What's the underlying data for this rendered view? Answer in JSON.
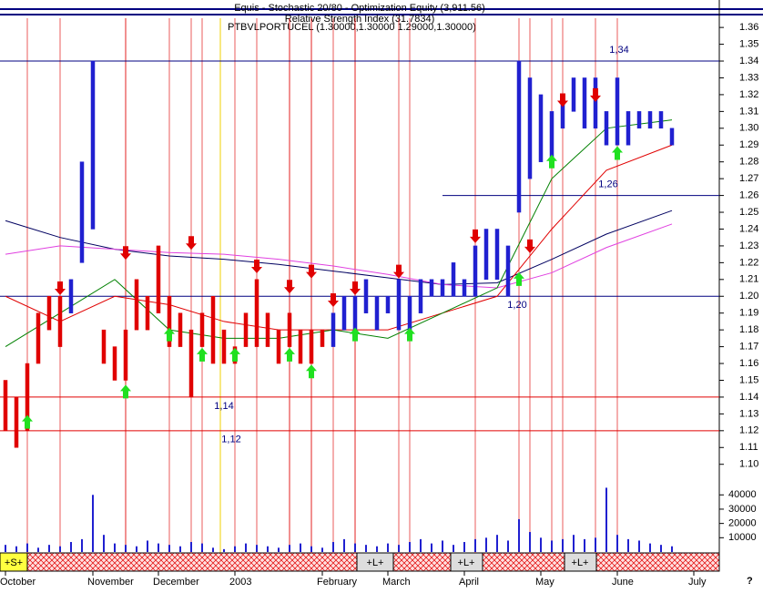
{
  "chart_data": {
    "type": "price-range",
    "title": "Equis - Stochastic 20/80 - Optimization Equity (3,911.56)",
    "subtitle": "Relative Strength Index (31.7834)",
    "symbol_line": "PTBVLPORTUCEL (1.30000,1.30000 1.29000,1.30000)",
    "highs": [
      1.15,
      1.14,
      1.16,
      1.19,
      1.2,
      1.2,
      1.21,
      1.28,
      1.34,
      1.18,
      1.17,
      1.18,
      1.21,
      1.2,
      1.23,
      1.2,
      1.19,
      1.18,
      1.19,
      1.2,
      1.18,
      1.17,
      1.19,
      1.21,
      1.19,
      1.18,
      1.19,
      1.18,
      1.18,
      1.18,
      1.19,
      1.2,
      1.2,
      1.21,
      1.2,
      1.2,
      1.21,
      1.2,
      1.21,
      1.21,
      1.21,
      1.22,
      1.21,
      1.23,
      1.24,
      1.24,
      1.23,
      1.34,
      1.33,
      1.32,
      1.31,
      1.32,
      1.33,
      1.33,
      1.33,
      1.31,
      1.33,
      1.31,
      1.31,
      1.31,
      1.31,
      1.3
    ],
    "lows": [
      1.12,
      1.11,
      1.12,
      1.16,
      1.18,
      1.17,
      1.19,
      1.22,
      1.24,
      1.16,
      1.15,
      1.15,
      1.18,
      1.18,
      1.19,
      1.17,
      1.17,
      1.14,
      1.17,
      1.16,
      1.16,
      1.16,
      1.17,
      1.17,
      1.17,
      1.16,
      1.17,
      1.16,
      1.16,
      1.17,
      1.17,
      1.18,
      1.18,
      1.19,
      1.18,
      1.19,
      1.18,
      1.18,
      1.19,
      1.2,
      1.2,
      1.2,
      1.2,
      1.2,
      1.21,
      1.21,
      1.2,
      1.25,
      1.27,
      1.28,
      1.28,
      1.3,
      1.31,
      1.3,
      1.3,
      1.29,
      1.29,
      1.29,
      1.3,
      1.3,
      1.3,
      1.29
    ],
    "colors": [
      "#e00000",
      "#e00000",
      "#e00000",
      "#e00000",
      "#e00000",
      "#e00000",
      "#2020d0",
      "#2020d0",
      "#2020d0",
      "#e00000",
      "#e00000",
      "#e00000",
      "#e00000",
      "#e00000",
      "#e00000",
      "#e00000",
      "#e00000",
      "#e00000",
      "#e00000",
      "#e00000",
      "#e00000",
      "#e00000",
      "#e00000",
      "#e00000",
      "#e00000",
      "#e00000",
      "#e00000",
      "#e00000",
      "#e00000",
      "#e00000",
      "#2020d0",
      "#2020d0",
      "#2020d0",
      "#2020d0",
      "#2020d0",
      "#2020d0",
      "#2020d0",
      "#2020d0",
      "#2020d0",
      "#2020d0",
      "#2020d0",
      "#2020d0",
      "#2020d0",
      "#2020d0",
      "#2020d0",
      "#2020d0",
      "#2020d0",
      "#2020d0",
      "#2020d0",
      "#2020d0",
      "#2020d0",
      "#2020d0",
      "#2020d0",
      "#2020d0",
      "#2020d0",
      "#2020d0",
      "#2020d0",
      "#2020d0",
      "#2020d0",
      "#2020d0",
      "#2020d0",
      "#2020d0"
    ],
    "lines": [
      {
        "color": "#000060",
        "x": [
          0,
          5,
          10,
          15,
          20,
          25,
          30,
          35,
          40,
          45,
          50,
          55,
          61
        ],
        "values": [
          1.245,
          1.235,
          1.228,
          1.224,
          1.222,
          1.219,
          1.215,
          1.211,
          1.207,
          1.208,
          1.222,
          1.237,
          1.251
        ]
      },
      {
        "color": "#e040e0",
        "x": [
          0,
          5,
          10,
          15,
          20,
          25,
          30,
          35,
          40,
          45,
          50,
          55,
          61
        ],
        "values": [
          1.225,
          1.23,
          1.228,
          1.226,
          1.225,
          1.222,
          1.218,
          1.213,
          1.207,
          1.205,
          1.214,
          1.229,
          1.243
        ]
      },
      {
        "color": "#e00000",
        "x": [
          0,
          5,
          10,
          15,
          20,
          25,
          30,
          35,
          40,
          45,
          50,
          55,
          61
        ],
        "values": [
          1.2,
          1.185,
          1.2,
          1.195,
          1.185,
          1.18,
          1.18,
          1.18,
          1.19,
          1.2,
          1.24,
          1.275,
          1.29
        ]
      },
      {
        "color": "#008000",
        "x": [
          0,
          5,
          10,
          15,
          20,
          25,
          30,
          35,
          40,
          45,
          50,
          55,
          61
        ],
        "values": [
          1.17,
          1.19,
          1.21,
          1.18,
          1.175,
          1.175,
          1.18,
          1.175,
          1.19,
          1.205,
          1.27,
          1.3,
          1.305
        ]
      }
    ],
    "buy_signals": {
      "color": "#20e020",
      "x": [
        2,
        11,
        15,
        18,
        21,
        26,
        28,
        32,
        37,
        47,
        50,
        56
      ],
      "values": [
        1.125,
        1.143,
        1.177,
        1.165,
        1.165,
        1.165,
        1.155,
        1.177,
        1.177,
        1.21,
        1.28,
        1.285
      ]
    },
    "sell_signals": {
      "color": "#e00000",
      "x": [
        5,
        11,
        17,
        23,
        26,
        28,
        30,
        32,
        36,
        43,
        48,
        51,
        54
      ],
      "values": [
        1.205,
        1.226,
        1.232,
        1.218,
        1.206,
        1.215,
        1.198,
        1.205,
        1.215,
        1.236,
        1.23,
        1.317,
        1.32
      ]
    },
    "levels": [
      {
        "value": 1.34,
        "label": "1,34"
      },
      {
        "value": 1.26,
        "label": "1,26"
      },
      {
        "value": 1.2,
        "label": "1,20"
      },
      {
        "value": 1.14,
        "label": "1,14"
      },
      {
        "value": 1.12,
        "label": "1,12"
      }
    ],
    "ylim": [
      1.089,
      1.372
    ],
    "yticks": [
      {
        "value": 1.1,
        "label": "1.10"
      },
      1.11,
      1.12,
      1.13,
      1.14,
      1.15,
      1.16,
      1.17,
      1.18,
      1.19,
      {
        "value": 1.2,
        "label": "1.20"
      },
      1.21,
      1.22,
      1.23,
      1.24,
      1.25,
      1.26,
      1.27,
      1.28,
      1.29,
      {
        "value": 1.3,
        "label": "1.30"
      },
      1.31,
      1.32,
      1.33,
      1.34,
      1.35,
      1.36
    ],
    "volume": [
      5000,
      4000,
      6000,
      3000,
      5000,
      4000,
      7000,
      9000,
      40000,
      12000,
      6000,
      5000,
      4000,
      8000,
      6000,
      5000,
      4000,
      7000,
      6000,
      3000,
      2000,
      4000,
      6000,
      5000,
      4000,
      3000,
      5000,
      6000,
      4000,
      3000,
      7000,
      9000,
      6000,
      5000,
      4000,
      6000,
      5000,
      7000,
      9000,
      6000,
      8000,
      5000,
      7000,
      9000,
      10000,
      12000,
      8000,
      23000,
      14000,
      10000,
      8000,
      9000,
      12000,
      9000,
      10000,
      45000,
      12000,
      9000,
      8000,
      6000,
      5000,
      4000
    ],
    "volume_color": "#2020d0",
    "vlim": [
      0,
      44000
    ],
    "vticks": [
      10000,
      20000,
      30000,
      40000
    ],
    "volume_unit": "00",
    "months": [
      {
        "label": "October",
        "index": 0
      },
      {
        "label": "November",
        "index": 8
      },
      {
        "label": "December",
        "index": 14
      },
      {
        "label": "2003",
        "index": 21
      },
      {
        "label": "February",
        "index": 29
      },
      {
        "label": "March",
        "index": 35
      },
      {
        "label": "April",
        "index": 42
      },
      {
        "label": "May",
        "index": 49
      },
      {
        "label": "June",
        "index": 56
      },
      {
        "label": "July",
        "index": 63
      }
    ],
    "positions": [
      "+S+",
      "+L+",
      "+L+",
      "+L+"
    ],
    "help_mark": "?"
  }
}
